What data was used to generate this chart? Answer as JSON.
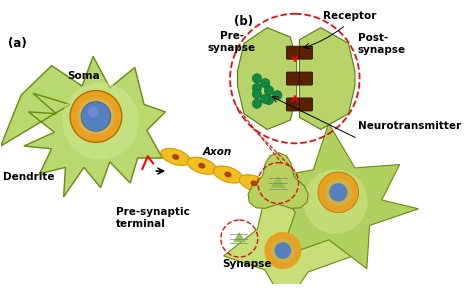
{
  "bg_color": "#ffffff",
  "neuron_green_light": "#b8d870",
  "neuron_green_dark": "#8ab830",
  "neuron_green_pale": "#d0e890",
  "soma_outer_color": "#e8a020",
  "soma_inner_color": "#5580c0",
  "axon_yellow": "#f0c020",
  "axon_yellow_dark": "#d09800",
  "dendrite_label": "Dendrite",
  "soma_label": "Soma",
  "axon_label": "Axon",
  "pre_syn_label": "Pre-synaptic\nterminal",
  "synapse_label": "Synapse",
  "receptor_label": "Receptor",
  "pre_synapse_label": "Pre-\nsynapse",
  "post_synapse_label": "Post-\nsynapse",
  "neurotransmitter_label": "Neurotransmitter",
  "label_a": "(a)",
  "label_b": "(b)",
  "dashed_color": "#dd1111",
  "receptor_bar_color": "#5a2200",
  "nt_dot_color": "#118844",
  "edge_color": "#6a8a10"
}
